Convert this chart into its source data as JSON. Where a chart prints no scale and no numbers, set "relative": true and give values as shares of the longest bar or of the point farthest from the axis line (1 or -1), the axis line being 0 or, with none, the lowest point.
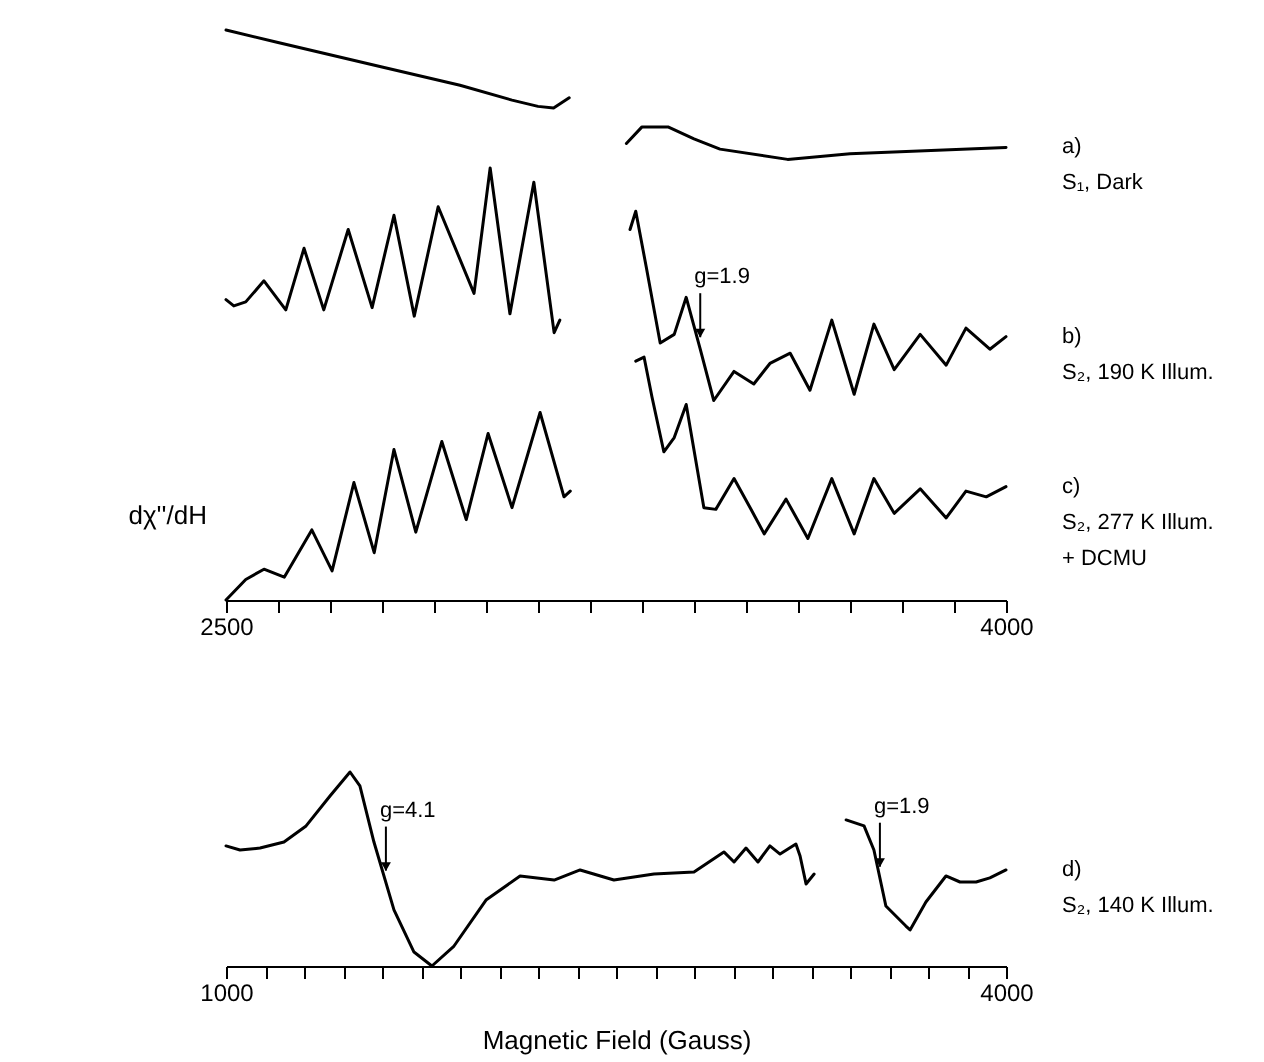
{
  "chart_data": [
    {
      "type": "line",
      "ylabel": "dχ''/dH",
      "relative": true,
      "xlim": [
        2500,
        4000
      ],
      "xticks": [
        2500,
        {
          "value": 2600,
          "label": null
        },
        {
          "value": 2700,
          "label": null
        },
        {
          "value": 2800,
          "label": null
        },
        {
          "value": 2900,
          "label": null
        },
        {
          "value": 3000,
          "label": null
        },
        {
          "value": 3100,
          "label": null
        },
        {
          "value": 3200,
          "label": null
        },
        {
          "value": 3300,
          "label": null
        },
        {
          "value": 3400,
          "label": null
        },
        {
          "value": 3500,
          "label": null
        },
        {
          "value": 3600,
          "label": null
        },
        {
          "value": 3700,
          "label": null
        },
        {
          "value": 3800,
          "label": null
        },
        {
          "value": 3900,
          "label": null
        },
        4000
      ],
      "series": [
        {
          "name": "a)\nS₁, Dark",
          "color": "#000000",
          "x": [
            2500,
            2600,
            2800,
            2950,
            3050,
            3100,
            3130,
            3160,
            3200,
            3270,
            3300,
            3350,
            3400,
            3450,
            3580,
            3700,
            4000
          ],
          "values": [
            1.0,
            0.978,
            0.935,
            0.903,
            0.877,
            0.866,
            0.863,
            0.881,
            null,
            0.801,
            0.83,
            0.83,
            0.809,
            0.791,
            0.773,
            0.783,
            0.794
          ]
        },
        {
          "name": "b)\nS₂, 190 K Illum.",
          "color": "#000000",
          "x": [
            2500,
            2515,
            2538,
            2573,
            2615,
            2650,
            2688,
            2735,
            2781,
            2823,
            2862,
            2908,
            2977,
            3008,
            3046,
            3092,
            3131,
            3142,
            3200,
            3277,
            3288,
            3308,
            3335,
            3362,
            3385,
            3412,
            3438,
            3477,
            3515,
            3546,
            3585,
            3623,
            3665,
            3708,
            3746,
            3785,
            3835,
            3885,
            3923,
            3969,
            4000
          ],
          "values": [
            0.527,
            0.516,
            0.523,
            0.56,
            0.509,
            0.617,
            0.509,
            0.65,
            0.513,
            0.675,
            0.498,
            0.69,
            0.538,
            0.758,
            0.502,
            0.733,
            0.469,
            0.491,
            null,
            0.65,
            0.682,
            0.585,
            0.451,
            0.466,
            0.531,
            0.44,
            0.35,
            0.401,
            0.379,
            0.415,
            0.433,
            0.368,
            0.491,
            0.361,
            0.484,
            0.404,
            0.466,
            0.412,
            0.477,
            0.44,
            0.462
          ]
        },
        {
          "name": "c)\nS₂, 277 K Illum.\n+ DCMU",
          "color": "#000000",
          "x": [
            2500,
            2538,
            2573,
            2612,
            2665,
            2704,
            2746,
            2785,
            2823,
            2865,
            2915,
            2962,
            3004,
            3050,
            3104,
            3150,
            3162,
            3220,
            3288,
            3304,
            3319,
            3342,
            3362,
            3385,
            3419,
            3442,
            3477,
            3508,
            3535,
            3577,
            3619,
            3665,
            3708,
            3746,
            3785,
            3835,
            3885,
            3923,
            3962,
            4000
          ],
          "values": [
            0.0,
            0.036,
            0.054,
            0.04,
            0.123,
            0.051,
            0.206,
            0.083,
            0.264,
            0.119,
            0.278,
            0.141,
            0.292,
            0.162,
            0.329,
            0.181,
            0.191,
            null,
            0.419,
            0.426,
            0.357,
            0.26,
            0.285,
            0.343,
            0.162,
            0.159,
            0.213,
            0.162,
            0.116,
            0.177,
            0.108,
            0.213,
            0.116,
            0.213,
            0.152,
            0.195,
            0.144,
            0.191,
            0.181,
            0.199
          ]
        }
      ],
      "annotations": [
        {
          "text": "g=1.9",
          "x": 3412,
          "y": 0.44
        }
      ]
    },
    {
      "type": "line",
      "xlabel": "Magnetic Field (Gauss)",
      "relative": true,
      "xlim": [
        1000,
        4000
      ],
      "xticks": [
        1000,
        {
          "value": 1150,
          "label": null
        },
        {
          "value": 1300,
          "label": null
        },
        {
          "value": 1450,
          "label": null
        },
        {
          "value": 1600,
          "label": null
        },
        {
          "value": 1750,
          "label": null
        },
        {
          "value": 1900,
          "label": null
        },
        {
          "value": 2050,
          "label": null
        },
        {
          "value": 2200,
          "label": null
        },
        {
          "value": 2350,
          "label": null
        },
        {
          "value": 2500,
          "label": null
        },
        {
          "value": 2650,
          "label": null
        },
        {
          "value": 2800,
          "label": null
        },
        {
          "value": 2950,
          "label": null
        },
        {
          "value": 3100,
          "label": null
        },
        {
          "value": 3250,
          "label": null
        },
        {
          "value": 3400,
          "label": null
        },
        {
          "value": 3550,
          "label": null
        },
        {
          "value": 3700,
          "label": null
        },
        {
          "value": 3850,
          "label": null
        },
        4000
      ],
      "series": [
        {
          "name": "d)\nS₂, 140 K Illum.",
          "color": "#000000",
          "x": [
            1000,
            1054,
            1131,
            1223,
            1308,
            1400,
            1477,
            1515,
            1569,
            1646,
            1723,
            1792,
            1877,
            2000,
            2131,
            2262,
            2362,
            2492,
            2646,
            2800,
            2915,
            2954,
            3000,
            3046,
            3092,
            3131,
            3192,
            3208,
            3231,
            3262,
            3320,
            3385,
            3454,
            3492,
            3538,
            3615,
            3631,
            3692,
            3769,
            3823,
            3885,
            3938,
            4000
          ],
          "values": [
            0.619,
            0.598,
            0.608,
            0.639,
            0.722,
            0.876,
            1.0,
            0.928,
            0.639,
            0.289,
            0.072,
            0.0,
            0.103,
            0.34,
            0.464,
            0.443,
            0.495,
            0.443,
            0.474,
            0.485,
            0.588,
            0.536,
            0.608,
            0.536,
            0.619,
            0.577,
            0.629,
            0.567,
            0.423,
            0.474,
            null,
            0.753,
            0.722,
            0.598,
            0.309,
            0.206,
            0.186,
            0.33,
            0.464,
            0.433,
            0.433,
            0.454,
            0.495
          ]
        }
      ],
      "annotations": [
        {
          "text": "g=4.1",
          "x": 1615,
          "y": 0.43
        },
        {
          "text": "g=1.9",
          "x": 3515,
          "y": 0.45
        }
      ]
    }
  ]
}
